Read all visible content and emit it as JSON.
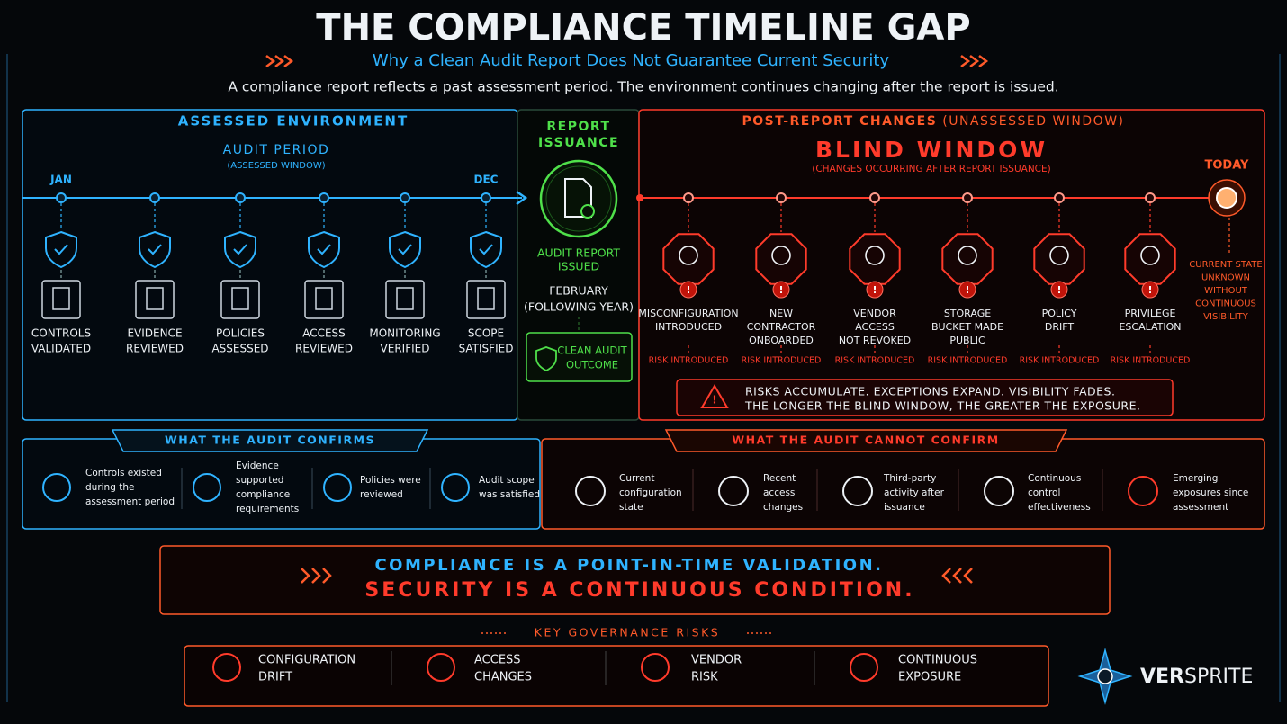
{
  "header": {
    "title": "THE COMPLIANCE TIMELINE GAP",
    "subtitle": "Why a Clean Audit Report Does Not Guarantee Current Security",
    "intro": "A compliance report reflects a past assessment period. The environment continues changing after the report is issued."
  },
  "assessed": {
    "heading": "ASSESSED ENVIRONMENT",
    "period_title": "AUDIT PERIOD",
    "period_subtitle": "(ASSESSED WINDOW)",
    "start": "JAN",
    "end": "DEC",
    "items": [
      {
        "lines": [
          "CONTROLS",
          "VALIDATED"
        ]
      },
      {
        "lines": [
          "EVIDENCE",
          "REVIEWED"
        ]
      },
      {
        "lines": [
          "POLICIES",
          "ASSESSED"
        ]
      },
      {
        "lines": [
          "ACCESS",
          "REVIEWED"
        ]
      },
      {
        "lines": [
          "MONITORING",
          "VERIFIED"
        ]
      },
      {
        "lines": [
          "SCOPE",
          "SATISFIED"
        ]
      }
    ]
  },
  "report": {
    "heading": [
      "REPORT",
      "ISSUANCE"
    ],
    "issued": [
      "AUDIT REPORT",
      "ISSUED"
    ],
    "date": [
      "FEBRUARY",
      "(FOLLOWING YEAR)"
    ],
    "outcome": [
      "CLEAN AUDIT",
      "OUTCOME"
    ]
  },
  "post": {
    "heading": "POST-REPORT CHANGES",
    "heading_note": "(UNASSESSED WINDOW)",
    "blind_title": "BLIND WINDOW",
    "blind_subtitle": "(CHANGES OCCURRING AFTER REPORT ISSUANCE)",
    "today": "TODAY",
    "today_note": [
      "CURRENT STATE",
      "UNKNOWN",
      "WITHOUT",
      "CONTINUOUS",
      "VISIBILITY"
    ],
    "items": [
      {
        "lines": [
          "MISCONFIGURATION",
          "INTRODUCED"
        ],
        "tag": "RISK INTRODUCED"
      },
      {
        "lines": [
          "NEW",
          "CONTRACTOR",
          "ONBOARDED"
        ],
        "tag": "RISK INTRODUCED"
      },
      {
        "lines": [
          "VENDOR",
          "ACCESS",
          "NOT REVOKED"
        ],
        "tag": "RISK INTRODUCED"
      },
      {
        "lines": [
          "STORAGE",
          "BUCKET MADE",
          "PUBLIC"
        ],
        "tag": "RISK INTRODUCED"
      },
      {
        "lines": [
          "POLICY",
          "DRIFT"
        ],
        "tag": "RISK INTRODUCED"
      },
      {
        "lines": [
          "PRIVILEGE",
          "ESCALATION"
        ],
        "tag": "RISK INTRODUCED"
      }
    ],
    "warning": [
      "RISKS ACCUMULATE. EXCEPTIONS EXPAND. VISIBILITY FADES.",
      "THE LONGER THE BLIND WINDOW, THE GREATER THE EXPOSURE."
    ]
  },
  "confirms": {
    "heading": "WHAT THE AUDIT CONFIRMS",
    "items": [
      {
        "lines": [
          "Controls existed",
          "during the",
          "assessment period"
        ]
      },
      {
        "lines": [
          "Evidence",
          "supported",
          "compliance",
          "requirements"
        ]
      },
      {
        "lines": [
          "Policies were",
          "reviewed"
        ]
      },
      {
        "lines": [
          "Audit scope",
          "was satisfied"
        ]
      }
    ]
  },
  "cannot": {
    "heading": "WHAT THE AUDIT CANNOT CONFIRM",
    "items": [
      {
        "lines": [
          "Current",
          "configuration",
          "state"
        ]
      },
      {
        "lines": [
          "Recent",
          "access",
          "changes"
        ]
      },
      {
        "lines": [
          "Third-party",
          "activity after",
          "issuance"
        ]
      },
      {
        "lines": [
          "Continuous",
          "control",
          "effectiveness"
        ]
      },
      {
        "lines": [
          "Emerging",
          "exposures since",
          "assessment"
        ]
      }
    ]
  },
  "banner": {
    "line1": "COMPLIANCE IS A POINT-IN-TIME VALIDATION.",
    "line2": "SECURITY IS A CONTINUOUS CONDITION."
  },
  "risks": {
    "heading": "KEY GOVERNANCE RISKS",
    "items": [
      {
        "lines": [
          "CONFIGURATION",
          "DRIFT"
        ]
      },
      {
        "lines": [
          "ACCESS",
          "CHANGES"
        ]
      },
      {
        "lines": [
          "VENDOR",
          "RISK"
        ]
      },
      {
        "lines": [
          "CONTINUOUS",
          "EXPOSURE"
        ]
      }
    ]
  },
  "logo": {
    "strong": "VER",
    "rest": "SPRITE"
  }
}
